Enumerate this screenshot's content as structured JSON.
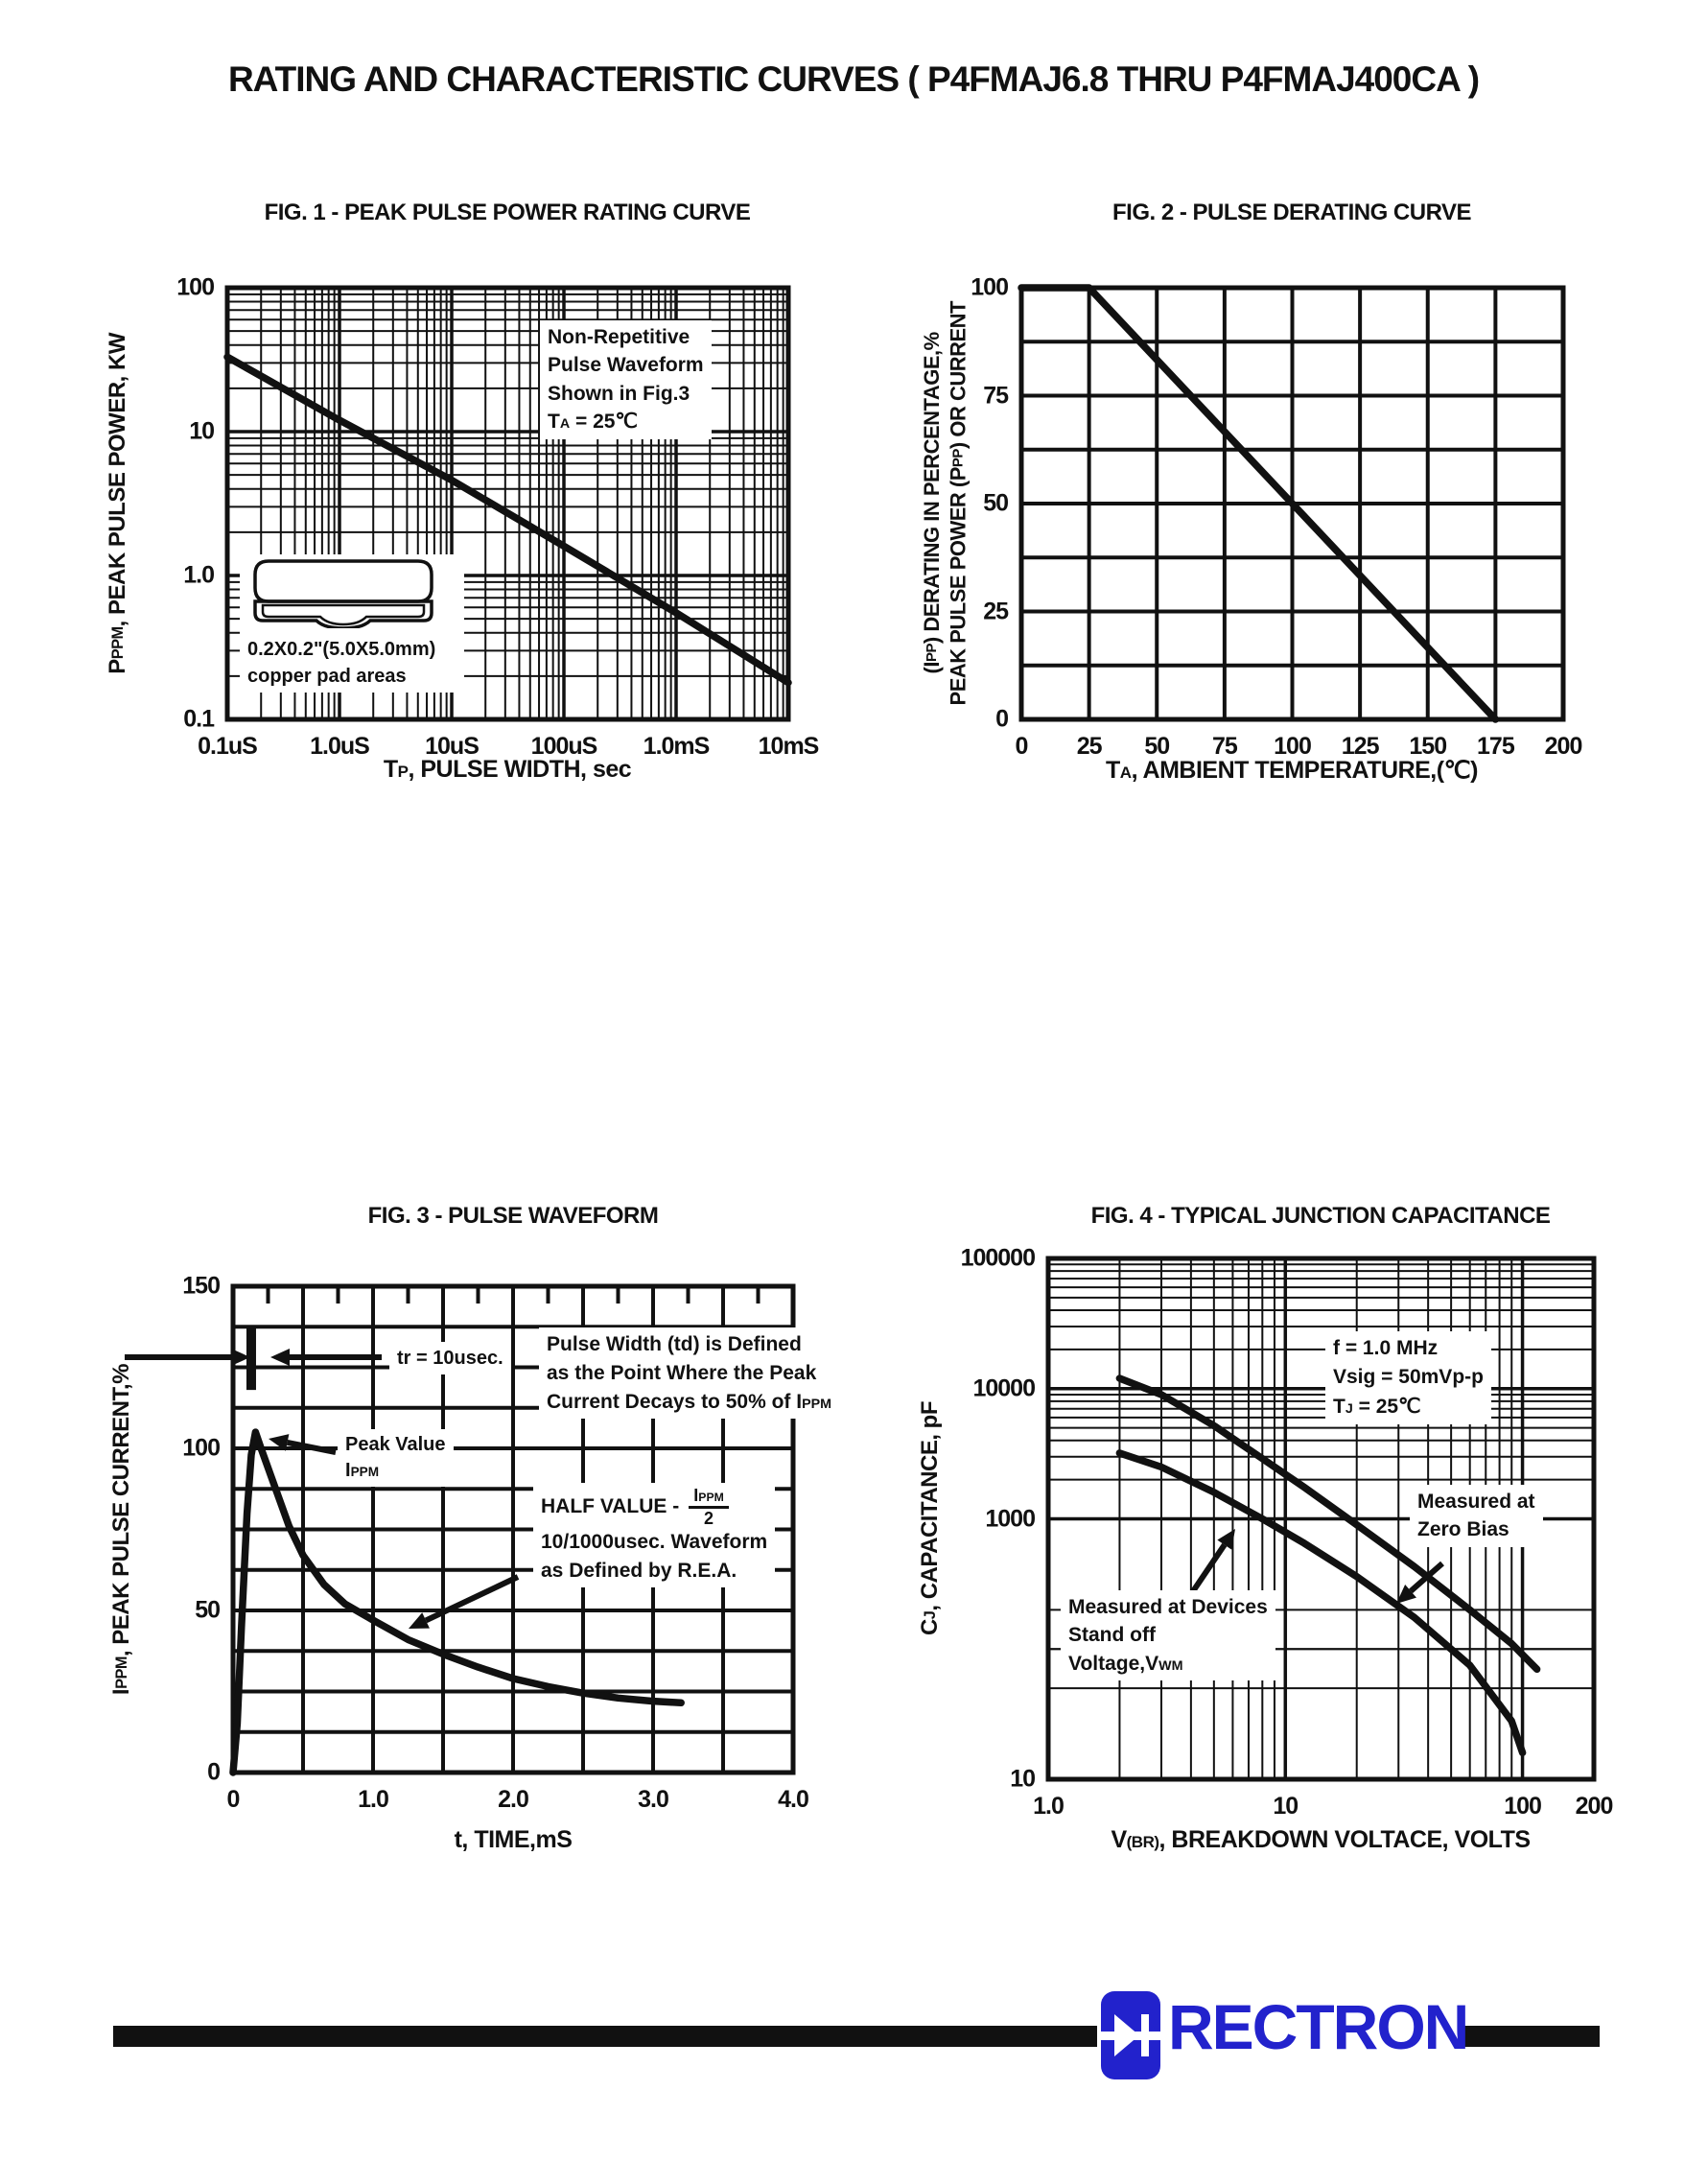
{
  "page": {
    "title": "RATING AND CHARACTERISTIC CURVES ( P4FMAJ6.8 THRU P4FMAJ400CA )"
  },
  "colors": {
    "ink": "#111111",
    "brand_blue": "#2222cc"
  },
  "footer": {
    "brand": "RECTRON"
  },
  "chart_data": [
    {
      "id": "fig1",
      "type": "line",
      "title": "FIG. 1 - PEAK PULSE POWER RATING CURVE",
      "xlabel": "T_{P}, PULSE WIDTH, sec",
      "ylabel": "P_{PPM}, PEAK PULSE POWER, KW",
      "xscale": "log",
      "yscale": "log",
      "xlim": [
        1e-07,
        0.01
      ],
      "ylim": [
        0.1,
        100
      ],
      "xticks": [
        [
          1e-07,
          "0.1uS"
        ],
        [
          1e-06,
          "1.0uS"
        ],
        [
          1e-05,
          "10uS"
        ],
        [
          0.0001,
          "100uS"
        ],
        [
          0.001,
          "1.0mS"
        ],
        [
          0.01,
          "10mS"
        ]
      ],
      "yticks": [
        [
          0.1,
          "0.1"
        ],
        [
          1,
          "1.0"
        ],
        [
          10,
          "10"
        ],
        [
          100,
          "100"
        ]
      ],
      "series": [
        {
          "name": "peak-pulse-power",
          "points": [
            [
              1e-07,
              33
            ],
            [
              1e-06,
              12
            ],
            [
              1e-05,
              4.6
            ],
            [
              0.0001,
              1.6
            ],
            [
              0.001,
              0.55
            ],
            [
              0.01,
              0.18
            ]
          ]
        }
      ],
      "annotations": {
        "conditions": "Non-Repetitive\nPulse Waveform\nShown in Fig.3\nT_{A} = 25℃",
        "pad": "0.2X0.2\"(5.0X5.0mm)\ncopper pad areas"
      }
    },
    {
      "id": "fig2",
      "type": "line",
      "title": "FIG. 2 - PULSE DERATING CURVE",
      "xlabel": "T_{A}, AMBIENT TEMPERATURE,(℃)",
      "ylabel_line1": "(I_{PP}) DERATING IN PERCENTAGE,%",
      "ylabel_line2": "PEAK PULSE POWER (P_{PP}) OR CURRENT",
      "xscale": "linear",
      "yscale": "linear",
      "xlim": [
        0,
        200
      ],
      "ylim": [
        0,
        100
      ],
      "xgrid_step": 25,
      "ygrid_step": 12.5,
      "xticks": [
        [
          0,
          "0"
        ],
        [
          25,
          "25"
        ],
        [
          50,
          "50"
        ],
        [
          75,
          "75"
        ],
        [
          100,
          "100"
        ],
        [
          125,
          "125"
        ],
        [
          150,
          "150"
        ],
        [
          175,
          "175"
        ],
        [
          200,
          "200"
        ]
      ],
      "yticks": [
        [
          0,
          "0"
        ],
        [
          25,
          "25"
        ],
        [
          50,
          "50"
        ],
        [
          75,
          "75"
        ],
        [
          100,
          "100"
        ]
      ],
      "series": [
        {
          "name": "pulse-derating",
          "points": [
            [
              0,
              100
            ],
            [
              25,
              100
            ],
            [
              175,
              0
            ]
          ]
        }
      ]
    },
    {
      "id": "fig3",
      "type": "line",
      "title": "FIG. 3 - PULSE WAVEFORM",
      "xlabel": "t, TIME,mS",
      "ylabel": "I_{PPM}, PEAK PULSE CURRENT,%",
      "xscale": "linear",
      "yscale": "linear",
      "xlim": [
        0,
        4
      ],
      "ylim": [
        0,
        150
      ],
      "xgrid_step": 0.5,
      "xminor_step": 0.25,
      "ygrid_step": 12.5,
      "xticks": [
        [
          0,
          "0"
        ],
        [
          1,
          "1.0"
        ],
        [
          2,
          "2.0"
        ],
        [
          3,
          "3.0"
        ],
        [
          4,
          "4.0"
        ]
      ],
      "yticks": [
        [
          0,
          "0"
        ],
        [
          50,
          "50"
        ],
        [
          100,
          "100"
        ],
        [
          150,
          "150"
        ]
      ],
      "series": [
        {
          "name": "pulse-waveform",
          "points": [
            [
              0,
              0
            ],
            [
              0.03,
              15
            ],
            [
              0.06,
              45
            ],
            [
              0.1,
              80
            ],
            [
              0.13,
              98
            ],
            [
              0.16,
              105
            ],
            [
              0.2,
              100
            ],
            [
              0.3,
              88
            ],
            [
              0.4,
              76
            ],
            [
              0.5,
              67
            ],
            [
              0.65,
              58
            ],
            [
              0.8,
              52
            ],
            [
              1.0,
              47
            ],
            [
              1.25,
              41
            ],
            [
              1.5,
              36.5
            ],
            [
              1.75,
              32.5
            ],
            [
              2.0,
              29
            ],
            [
              2.25,
              26.5
            ],
            [
              2.5,
              24.5
            ],
            [
              2.75,
              23
            ],
            [
              3.0,
              22
            ],
            [
              3.2,
              21.5
            ]
          ]
        }
      ],
      "annotations": {
        "tr": "tr = 10usec.",
        "peak": "Peak Value\nI_{PPM}",
        "pulse_width": "Pulse Width (td) is Defined\nas the Point Where the Peak\nCurrent Decays to 50% of I_{PPM}",
        "half_value_prefix": "HALF VALUE -",
        "half_value_num": "I_{PPM}",
        "half_value_den": "2",
        "rea": "10/1000usec. Waveform\nas Defined by R.E.A."
      }
    },
    {
      "id": "fig4",
      "type": "line",
      "title": "FIG. 4 - TYPICAL JUNCTION CAPACITANCE",
      "xlabel": "V_{(BR)}, BREAKDOWN VOLTACE, VOLTS",
      "ylabel": "C_{J}, CAPACITANCE, pF",
      "xscale": "log",
      "yscale": "log",
      "xlim": [
        1,
        200
      ],
      "ylim": [
        10,
        100000
      ],
      "xticks": [
        [
          1,
          "1.0"
        ],
        [
          10,
          "10"
        ],
        [
          100,
          "100"
        ],
        [
          200,
          "200"
        ]
      ],
      "yticks": [
        [
          10,
          "10"
        ],
        [
          1000,
          "1000"
        ],
        [
          10000,
          "10000"
        ],
        [
          100000,
          "100000"
        ]
      ],
      "series": [
        {
          "name": "measured-at-zero-bias",
          "points": [
            [
              2,
              12000
            ],
            [
              3,
              9000
            ],
            [
              5,
              5200
            ],
            [
              8,
              2900
            ],
            [
              12,
              1750
            ],
            [
              20,
              900
            ],
            [
              35,
              430
            ],
            [
              60,
              200
            ],
            [
              90,
              110
            ],
            [
              115,
              70
            ]
          ]
        },
        {
          "name": "measured-at-standoff-voltage",
          "points": [
            [
              2,
              3200
            ],
            [
              3,
              2500
            ],
            [
              5,
              1600
            ],
            [
              8,
              1000
            ],
            [
              12,
              650
            ],
            [
              20,
              360
            ],
            [
              35,
              175
            ],
            [
              60,
              75
            ],
            [
              90,
              28
            ],
            [
              100,
              16
            ]
          ]
        }
      ],
      "annotations": {
        "conditions": "f = 1.0 MHz\nVsig = 50mVp-p\nT_{J} = 25℃",
        "zero_bias": "Measured at\nZero Bias",
        "standoff": "Measured at Devices\nStand off\nVoltage,V_{WM}"
      }
    }
  ]
}
